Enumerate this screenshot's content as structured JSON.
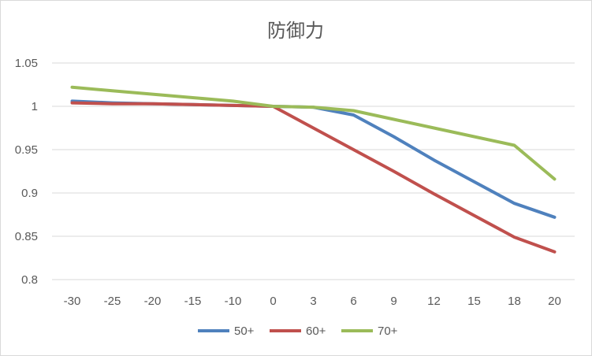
{
  "chart_data": {
    "type": "line",
    "title": "防御力",
    "xlabel": "",
    "ylabel": "",
    "categories": [
      "-30",
      "-25",
      "-20",
      "-15",
      "-10",
      "0",
      "3",
      "6",
      "9",
      "12",
      "15",
      "18",
      "20"
    ],
    "ylim": [
      0.8,
      1.05
    ],
    "yticks": [
      "0.8",
      "0.85",
      "0.9",
      "0.95",
      "1",
      "1.05"
    ],
    "grid": true,
    "legend_position": "bottom",
    "series": [
      {
        "name": "50+",
        "color": "#4f81bd",
        "values": [
          1.006,
          1.004,
          1.003,
          1.002,
          1.001,
          1.0,
          0.999,
          0.99,
          0.965,
          0.938,
          0.913,
          0.888,
          0.872
        ]
      },
      {
        "name": "60+",
        "color": "#c0504d",
        "values": [
          1.004,
          1.003,
          1.003,
          1.002,
          1.001,
          1.0,
          0.975,
          0.95,
          0.925,
          0.899,
          0.874,
          0.849,
          0.832
        ]
      },
      {
        "name": "70+",
        "color": "#9bbb59",
        "values": [
          1.022,
          1.018,
          1.014,
          1.01,
          1.006,
          1.0,
          0.999,
          0.995,
          0.985,
          0.975,
          0.965,
          0.955,
          0.916
        ]
      }
    ]
  }
}
